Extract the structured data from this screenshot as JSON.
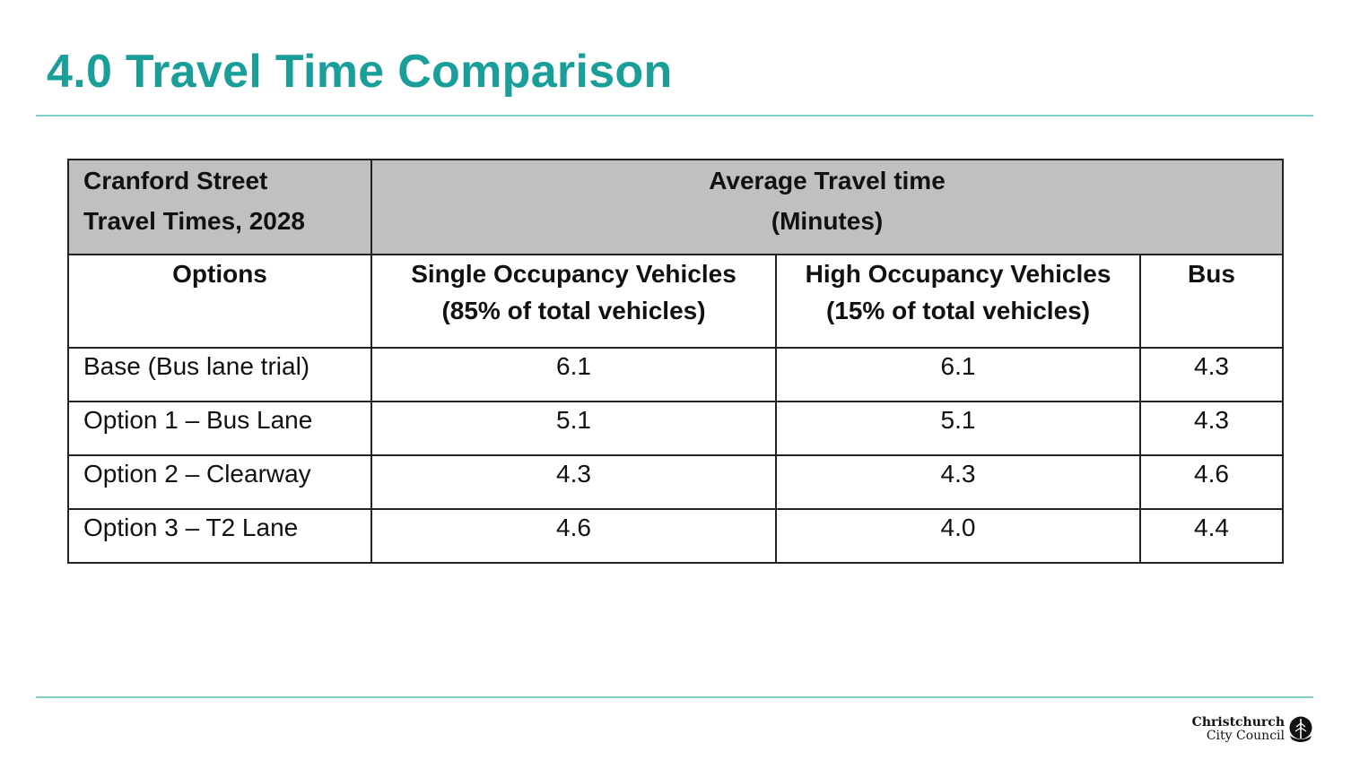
{
  "slide": {
    "title": "4.0 Travel Time Comparison"
  },
  "table": {
    "corner_header": [
      "Cranford Street",
      "Travel Times, 2028"
    ],
    "group_header": [
      "Average Travel time",
      "(Minutes)"
    ],
    "columns": [
      {
        "lines": [
          "Options"
        ]
      },
      {
        "lines": [
          "Single Occupancy Vehicles",
          "(85% of total vehicles)"
        ]
      },
      {
        "lines": [
          "High Occupancy Vehicles",
          "(15% of total vehicles)"
        ]
      },
      {
        "lines": [
          "Bus"
        ]
      }
    ],
    "rows": [
      {
        "option": "Base (Bus lane trial)",
        "sov": "6.1",
        "hov": "6.1",
        "bus": "4.3"
      },
      {
        "option": "Option 1 – Bus Lane",
        "sov": "5.1",
        "hov": "5.1",
        "bus": "4.3"
      },
      {
        "option": "Option 2 – Clearway",
        "sov": "4.3",
        "hov": "4.3",
        "bus": "4.6"
      },
      {
        "option": "Option 3 – T2 Lane",
        "sov": "4.6",
        "hov": "4.0",
        "bus": "4.4"
      }
    ]
  },
  "logo": {
    "line1": "Christchurch",
    "line2": "City Council",
    "icon": "tree-icon"
  },
  "colors": {
    "accent": "#1a9e9a",
    "rule": "#7fcfca",
    "header_fill": "#c0c0c0"
  }
}
